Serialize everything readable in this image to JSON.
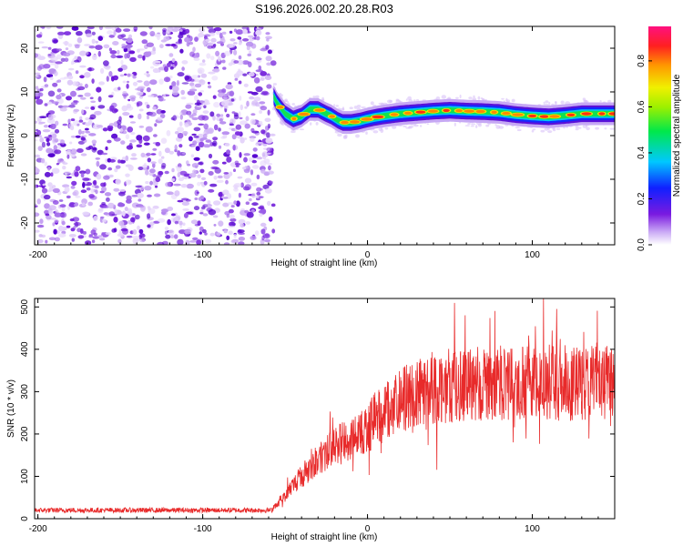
{
  "title": "S196.2026.002.20.28.R03",
  "chart_data": [
    {
      "type": "heatmap",
      "panel": "spectrogram",
      "xlabel": "Height of straight line (km)",
      "ylabel": "Frequency (Hz)",
      "xlim": [
        -202,
        150
      ],
      "ylim": [
        -25,
        25
      ],
      "x_ticks": [
        -200,
        -100,
        0,
        100
      ],
      "y_ticks": [
        -20,
        -10,
        0,
        10,
        20
      ],
      "noise_region_x": [
        -202,
        -57
      ],
      "ridge": {
        "name": "spectral ridge",
        "x": [
          -57,
          -55,
          -50,
          -45,
          -40,
          -35,
          -30,
          -25,
          -22,
          -18,
          -15,
          -10,
          -5,
          0,
          5,
          10,
          20,
          30,
          40,
          50,
          60,
          70,
          80,
          90,
          100,
          110,
          120,
          130,
          140,
          150
        ],
        "y": [
          9,
          7.5,
          5.0,
          3.8,
          4.5,
          6.0,
          6.0,
          5.0,
          4.5,
          3.5,
          3.0,
          3.0,
          3.3,
          3.8,
          4.2,
          4.5,
          5.0,
          5.3,
          5.6,
          5.8,
          5.6,
          5.5,
          5.3,
          4.8,
          4.5,
          4.3,
          4.6,
          5.0,
          5.0,
          5.0
        ]
      },
      "colorbar": {
        "label": "Normalized spectral amplitude",
        "range": [
          0.0,
          0.95
        ],
        "ticks": [
          "0.0",
          "0.2",
          "0.4",
          "0.6",
          "0.8"
        ]
      }
    },
    {
      "type": "line",
      "panel": "snr",
      "xlabel": "Height of straight line (km)",
      "ylabel": "SNR (10 * v/v)",
      "xlim": [
        -202,
        150
      ],
      "ylim": [
        0,
        520
      ],
      "x_ticks": [
        -200,
        -100,
        0,
        100
      ],
      "y_ticks": [
        0,
        100,
        200,
        300,
        400,
        500
      ],
      "series": [
        {
          "name": "SNR",
          "color": "#e82a2a",
          "envelope_x": [
            -202,
            -100,
            -58,
            -55,
            -50,
            -45,
            -40,
            -35,
            -30,
            -25,
            -20,
            -15,
            -10,
            -5,
            0,
            5,
            10,
            15,
            20,
            25,
            30,
            40,
            50,
            60,
            80,
            100,
            120,
            140,
            150
          ],
          "envelope_y": [
            20,
            20,
            20,
            35,
            55,
            80,
            100,
            120,
            140,
            155,
            170,
            180,
            185,
            200,
            215,
            235,
            250,
            260,
            275,
            290,
            300,
            310,
            315,
            320,
            320,
            320,
            320,
            320,
            325
          ]
        }
      ]
    }
  ]
}
